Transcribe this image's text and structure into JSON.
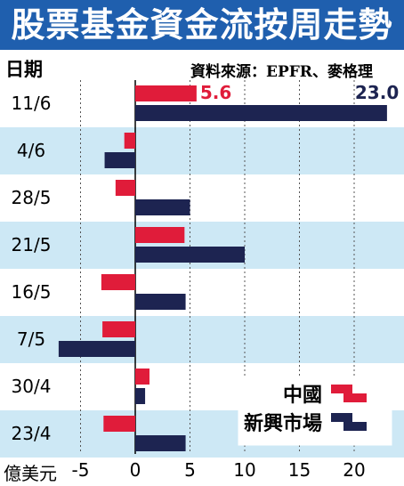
{
  "title": "股票基金資金流按周走勢",
  "y_axis_label": "日期",
  "source": "資料來源：EPFR、麥格理",
  "x_unit": "億美元",
  "colors": {
    "title_bg": "#1f5fae",
    "stripe": "#cde8f5",
    "china": "#e01c3a",
    "emerging": "#1d2451",
    "grid": "#555555"
  },
  "chart_data": {
    "type": "bar",
    "orientation": "horizontal",
    "categories": [
      "11/6",
      "4/6",
      "28/5",
      "21/5",
      "16/5",
      "7/5",
      "30/4",
      "23/4"
    ],
    "series": [
      {
        "name": "中國",
        "values": [
          5.6,
          -1.0,
          -1.8,
          4.5,
          -3.1,
          -3.0,
          1.3,
          -2.9
        ]
      },
      {
        "name": "新興市場",
        "values": [
          23.0,
          -2.8,
          5.0,
          10.0,
          4.6,
          -7.0,
          0.9,
          4.6
        ]
      }
    ],
    "data_labels": [
      "5.6",
      "23.0"
    ],
    "xticks": [
      -5,
      0,
      5,
      10,
      15,
      20
    ],
    "xtick_labels": [
      "-5",
      "0",
      "5",
      "10",
      "15",
      "20"
    ],
    "xlim": [
      -7.5,
      23.5
    ],
    "grid": "vertical dashed",
    "legend": "bottom-right"
  }
}
